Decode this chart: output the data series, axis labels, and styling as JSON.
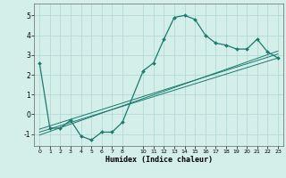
{
  "xlabel": "Humidex (Indice chaleur)",
  "bg_color": "#d4eeea",
  "line_color": "#1a7a6e",
  "grid_color": "#aed8d2",
  "xlim": [
    -0.5,
    23.5
  ],
  "ylim": [
    -1.6,
    5.6
  ],
  "xtick_vals": [
    0,
    1,
    2,
    3,
    4,
    5,
    6,
    7,
    8,
    10,
    11,
    12,
    13,
    14,
    15,
    16,
    17,
    18,
    19,
    20,
    21,
    22,
    23
  ],
  "ytick_vals": [
    -1,
    0,
    1,
    2,
    3,
    4,
    5
  ],
  "main_x": [
    0,
    1,
    2,
    3,
    4,
    5,
    6,
    7,
    8,
    10,
    11,
    12,
    13,
    14,
    15,
    16,
    17,
    18,
    19,
    20,
    21,
    22,
    23
  ],
  "main_y": [
    2.6,
    -0.7,
    -0.7,
    -0.3,
    -1.1,
    -1.3,
    -0.9,
    -0.9,
    -0.4,
    2.2,
    2.6,
    3.8,
    4.9,
    5.0,
    4.8,
    4.0,
    3.6,
    3.5,
    3.3,
    3.3,
    3.8,
    3.15,
    2.85
  ],
  "diag_lines": [
    {
      "x": [
        0,
        23
      ],
      "y": [
        -0.75,
        3.05
      ]
    },
    {
      "x": [
        0,
        23
      ],
      "y": [
        -0.9,
        2.85
      ]
    },
    {
      "x": [
        0,
        23
      ],
      "y": [
        -1.05,
        3.2
      ]
    }
  ]
}
